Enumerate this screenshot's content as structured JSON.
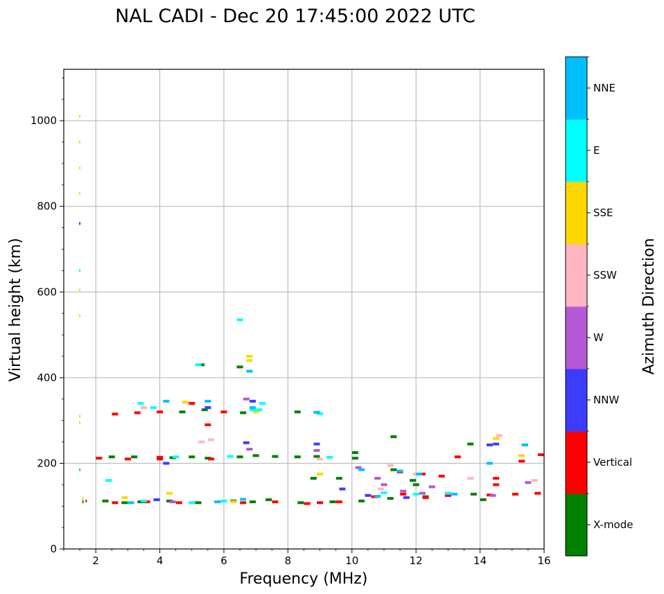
{
  "chart_data": {
    "type": "scatter",
    "title": "NAL CADI - Dec 20 17:45:00 2022 UTC",
    "xlabel": "Frequency (MHz)",
    "ylabel": "Virtual height (km)",
    "xlim": [
      1,
      16
    ],
    "ylim": [
      0,
      1120
    ],
    "xticks": [
      2,
      4,
      6,
      8,
      10,
      12,
      14,
      16
    ],
    "xtick_labels": [
      "2",
      "4",
      "6",
      "8",
      "10",
      "12",
      "14",
      "16"
    ],
    "yticks": [
      0,
      200,
      400,
      600,
      800,
      1000
    ],
    "ytick_labels": [
      "0",
      "200",
      "400",
      "600",
      "800",
      "1000"
    ],
    "grid": true,
    "colorbar": {
      "label": "Azimuth Direction",
      "categories": [
        {
          "name": "X-mode",
          "color": "#008000"
        },
        {
          "name": "Vertical",
          "color": "#ff0000"
        },
        {
          "name": "NNW",
          "color": "#3c3cff"
        },
        {
          "name": "W",
          "color": "#b657d6"
        },
        {
          "name": "SSW",
          "color": "#ffb6c1"
        },
        {
          "name": "SSE",
          "color": "#ffd700"
        },
        {
          "name": "E",
          "color": "#00ffff"
        },
        {
          "name": "NNE",
          "color": "#00bfff"
        }
      ]
    },
    "series": [
      {
        "name": "X-mode",
        "points": [
          [
            1.6,
            110
          ],
          [
            2.3,
            112
          ],
          [
            2.9,
            108
          ],
          [
            3.4,
            110
          ],
          [
            4.3,
            112
          ],
          [
            5.2,
            108
          ],
          [
            6.3,
            112
          ],
          [
            6.9,
            110
          ],
          [
            7.4,
            115
          ],
          [
            8.4,
            108
          ],
          [
            9.4,
            110
          ],
          [
            10.3,
            112
          ],
          [
            11.2,
            118
          ],
          [
            12.3,
            122
          ],
          [
            13.0,
            125
          ],
          [
            13.8,
            128
          ],
          [
            14.1,
            115
          ],
          [
            2.5,
            215
          ],
          [
            3.2,
            215
          ],
          [
            4.4,
            213
          ],
          [
            5.0,
            215
          ],
          [
            5.5,
            212
          ],
          [
            6.5,
            215
          ],
          [
            7.0,
            218
          ],
          [
            7.6,
            216
          ],
          [
            8.3,
            215
          ],
          [
            8.9,
            216
          ],
          [
            10.1,
            212
          ],
          [
            13.7,
            245
          ],
          [
            12.0,
            150
          ],
          [
            11.3,
            185
          ],
          [
            11.9,
            160
          ],
          [
            4.7,
            320
          ],
          [
            5.4,
            325
          ],
          [
            6.6,
            318
          ],
          [
            8.3,
            320
          ],
          [
            5.3,
            430
          ],
          [
            6.5,
            425
          ],
          [
            11.3,
            262
          ],
          [
            8.8,
            165
          ],
          [
            9.6,
            165
          ],
          [
            10.1,
            225
          ]
        ]
      },
      {
        "name": "Vertical",
        "points": [
          [
            1.7,
            112
          ],
          [
            2.6,
            108
          ],
          [
            3.6,
            110
          ],
          [
            4.6,
            108
          ],
          [
            5.8,
            110
          ],
          [
            6.6,
            108
          ],
          [
            7.6,
            110
          ],
          [
            8.6,
            106
          ],
          [
            9.0,
            108
          ],
          [
            9.6,
            110
          ],
          [
            10.7,
            122
          ],
          [
            11.6,
            128
          ],
          [
            12.3,
            120
          ],
          [
            13.0,
            125
          ],
          [
            14.3,
            126
          ],
          [
            15.1,
            128
          ],
          [
            15.8,
            130
          ],
          [
            2.1,
            212
          ],
          [
            3.0,
            210
          ],
          [
            4.0,
            214
          ],
          [
            5.6,
            210
          ],
          [
            14.5,
            150
          ],
          [
            14.5,
            165
          ],
          [
            15.3,
            205
          ],
          [
            13.3,
            215
          ],
          [
            11.5,
            180
          ],
          [
            12.2,
            175
          ],
          [
            12.8,
            170
          ],
          [
            3.3,
            318
          ],
          [
            4.0,
            320
          ],
          [
            5.0,
            340
          ],
          [
            6.0,
            320
          ],
          [
            2.6,
            315
          ],
          [
            4.0,
            210
          ],
          [
            5.5,
            290
          ],
          [
            15.9,
            220
          ]
        ]
      },
      {
        "name": "NNW",
        "points": [
          [
            1.5,
            760
          ],
          [
            3.9,
            115
          ],
          [
            8.9,
            245
          ],
          [
            9.7,
            140
          ],
          [
            10.5,
            125
          ],
          [
            14.3,
            243
          ],
          [
            14.5,
            245
          ],
          [
            6.7,
            248
          ],
          [
            5.5,
            330
          ],
          [
            6.9,
            345
          ],
          [
            4.2,
            200
          ],
          [
            11.7,
            120
          ]
        ]
      },
      {
        "name": "W",
        "points": [
          [
            10.2,
            190
          ],
          [
            11.0,
            150
          ],
          [
            11.6,
            135
          ],
          [
            12.2,
            130
          ],
          [
            13.0,
            130
          ],
          [
            14.4,
            125
          ],
          [
            6.8,
            233
          ],
          [
            6.7,
            350
          ],
          [
            8.9,
            230
          ],
          [
            12.5,
            145
          ],
          [
            15.5,
            155
          ],
          [
            4.4,
            110
          ],
          [
            10.8,
            165
          ]
        ]
      },
      {
        "name": "SSW",
        "points": [
          [
            12.0,
            175
          ],
          [
            13.7,
            165
          ],
          [
            15.7,
            160
          ],
          [
            14.6,
            265
          ],
          [
            11.2,
            195
          ],
          [
            10.9,
            140
          ],
          [
            9.0,
            210
          ],
          [
            5.3,
            250
          ],
          [
            3.5,
            330
          ],
          [
            5.6,
            255
          ]
        ]
      },
      {
        "name": "SSE",
        "points": [
          [
            1.5,
            1010
          ],
          [
            1.5,
            950
          ],
          [
            1.5,
            890
          ],
          [
            1.5,
            830
          ],
          [
            1.5,
            605
          ],
          [
            1.5,
            545
          ],
          [
            1.5,
            310
          ],
          [
            1.5,
            295
          ],
          [
            6.8,
            450
          ],
          [
            6.8,
            440
          ],
          [
            9.0,
            175
          ],
          [
            15.3,
            218
          ],
          [
            14.5,
            258
          ],
          [
            4.8,
            343
          ],
          [
            6.3,
            110
          ],
          [
            4.3,
            130
          ],
          [
            2.9,
            120
          ],
          [
            7.0,
            320
          ],
          [
            1.6,
            118
          ]
        ]
      },
      {
        "name": "E",
        "points": [
          [
            1.5,
            650
          ],
          [
            6.5,
            535
          ],
          [
            3.8,
            330
          ],
          [
            5.2,
            430
          ],
          [
            6.9,
            325
          ],
          [
            7.1,
            325
          ],
          [
            9.0,
            316
          ],
          [
            9.3,
            214
          ],
          [
            6.2,
            216
          ],
          [
            4.5,
            215
          ],
          [
            3.5,
            112
          ],
          [
            5.0,
            108
          ],
          [
            6.0,
            112
          ],
          [
            12.0,
            128
          ],
          [
            13.0,
            130
          ],
          [
            15.4,
            243
          ],
          [
            2.4,
            160
          ],
          [
            3.4,
            340
          ],
          [
            11.0,
            131
          ],
          [
            7.2,
            340
          ]
        ]
      },
      {
        "name": "NNE",
        "points": [
          [
            1.5,
            185
          ],
          [
            6.8,
            415
          ],
          [
            4.2,
            345
          ],
          [
            5.5,
            345
          ],
          [
            6.9,
            330
          ],
          [
            10.3,
            185
          ],
          [
            14.3,
            200
          ],
          [
            11.5,
            182
          ],
          [
            12.1,
            175
          ],
          [
            15.4,
            243
          ],
          [
            13.2,
            128
          ],
          [
            8.9,
            319
          ],
          [
            5.8,
            110
          ],
          [
            6.6,
            116
          ],
          [
            3.1,
            108
          ],
          [
            10.8,
            123
          ]
        ]
      }
    ]
  }
}
